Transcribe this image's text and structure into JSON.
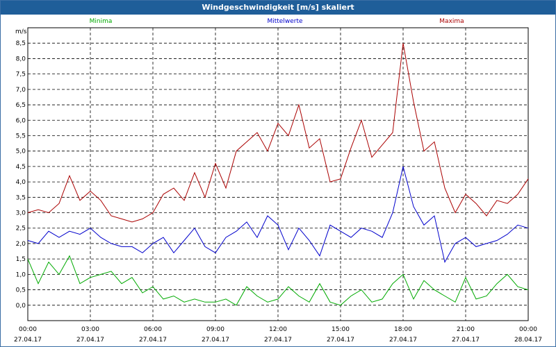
{
  "window": {
    "title": "Windgeschwindigkeit [m/s] skaliert"
  },
  "chart_data": {
    "type": "line",
    "title": "Windgeschwindigkeit [m/s] skaliert",
    "ylabel": "m/s",
    "ylim": [
      -0.5,
      9.0
    ],
    "xlim_hours": [
      0,
      24
    ],
    "grid": true,
    "y_ticks": [
      "0,0",
      "0,5",
      "1,0",
      "1,5",
      "2,0",
      "2,5",
      "3,0",
      "3,5",
      "4,0",
      "4,5",
      "5,0",
      "5,5",
      "6,0",
      "6,5",
      "7,0",
      "7,5",
      "8,0",
      "8,5"
    ],
    "x_ticks": [
      {
        "time": "00:00",
        "date": "27.04.17"
      },
      {
        "time": "03:00",
        "date": "27.04.17"
      },
      {
        "time": "06:00",
        "date": "27.04.17"
      },
      {
        "time": "09:00",
        "date": "27.04.17"
      },
      {
        "time": "12:00",
        "date": "27.04.17"
      },
      {
        "time": "15:00",
        "date": "27.04.17"
      },
      {
        "time": "18:00",
        "date": "27.04.17"
      },
      {
        "time": "21:00",
        "date": "27.04.17"
      },
      {
        "time": "00:00",
        "date": "28.04.17"
      }
    ],
    "series": [
      {
        "name": "Minima",
        "color": "#00aa00",
        "x_hours": [
          0,
          0.5,
          1,
          1.5,
          2,
          2.5,
          3,
          3.5,
          4,
          4.5,
          5,
          5.5,
          6,
          6.5,
          7,
          7.5,
          8,
          8.5,
          9,
          9.5,
          10,
          10.5,
          11,
          11.5,
          12,
          12.5,
          13,
          13.5,
          14,
          14.5,
          15,
          15.5,
          16,
          16.5,
          17,
          17.5,
          18,
          18.5,
          19,
          19.5,
          20,
          20.5,
          21,
          21.5,
          22,
          22.5,
          23,
          23.5,
          24
        ],
        "values": [
          1.5,
          0.7,
          1.4,
          1.0,
          1.6,
          0.7,
          0.9,
          1.0,
          1.1,
          0.7,
          0.9,
          0.4,
          0.6,
          0.2,
          0.3,
          0.1,
          0.2,
          0.1,
          0.1,
          0.2,
          0.0,
          0.6,
          0.3,
          0.1,
          0.2,
          0.6,
          0.3,
          0.1,
          0.7,
          0.1,
          0.0,
          0.3,
          0.5,
          0.1,
          0.2,
          0.7,
          1.0,
          0.2,
          0.8,
          0.5,
          0.3,
          0.1,
          0.9,
          0.2,
          0.3,
          0.7,
          1.0,
          0.6,
          0.5
        ]
      },
      {
        "name": "Mittelwerte",
        "color": "#0000cc",
        "x_hours": [
          0,
          0.5,
          1,
          1.5,
          2,
          2.5,
          3,
          3.5,
          4,
          4.5,
          5,
          5.5,
          6,
          6.5,
          7,
          7.5,
          8,
          8.5,
          9,
          9.5,
          10,
          10.5,
          11,
          11.5,
          12,
          12.5,
          13,
          13.5,
          14,
          14.5,
          15,
          15.5,
          16,
          16.5,
          17,
          17.5,
          18,
          18.5,
          19,
          19.5,
          20,
          20.5,
          21,
          21.5,
          22,
          22.5,
          23,
          23.5,
          24
        ],
        "values": [
          2.1,
          2.0,
          2.4,
          2.2,
          2.4,
          2.3,
          2.5,
          2.2,
          2.0,
          1.9,
          1.9,
          1.7,
          2.0,
          2.2,
          1.7,
          2.1,
          2.5,
          1.9,
          1.7,
          2.2,
          2.4,
          2.7,
          2.2,
          2.9,
          2.6,
          1.8,
          2.5,
          2.1,
          1.6,
          2.6,
          2.4,
          2.2,
          2.5,
          2.4,
          2.2,
          3.0,
          4.5,
          3.2,
          2.6,
          2.9,
          1.4,
          2.0,
          2.2,
          1.9,
          2.0,
          2.1,
          2.3,
          2.6,
          2.5
        ]
      },
      {
        "name": "Maxima",
        "color": "#aa0000",
        "x_hours": [
          0,
          0.5,
          1,
          1.5,
          2,
          2.5,
          3,
          3.5,
          4,
          4.5,
          5,
          5.5,
          6,
          6.5,
          7,
          7.5,
          8,
          8.5,
          9,
          9.5,
          10,
          10.5,
          11,
          11.5,
          12,
          12.5,
          13,
          13.5,
          14,
          14.5,
          15,
          15.5,
          16,
          16.5,
          17,
          17.5,
          18,
          18.5,
          19,
          19.5,
          20,
          20.5,
          21,
          21.5,
          22,
          22.5,
          23,
          23.5,
          24
        ],
        "values": [
          3.0,
          3.1,
          3.0,
          3.3,
          4.2,
          3.4,
          3.7,
          3.4,
          2.9,
          2.8,
          2.7,
          2.8,
          3.0,
          3.6,
          3.8,
          3.4,
          4.3,
          3.5,
          4.6,
          3.8,
          5.0,
          5.3,
          5.6,
          5.0,
          5.9,
          5.5,
          6.5,
          5.1,
          5.4,
          4.0,
          4.1,
          5.1,
          6.0,
          4.8,
          5.2,
          5.6,
          8.5,
          6.6,
          5.0,
          5.3,
          3.8,
          3.0,
          3.6,
          3.3,
          2.9,
          3.4,
          3.3,
          3.6,
          4.1
        ]
      }
    ]
  }
}
